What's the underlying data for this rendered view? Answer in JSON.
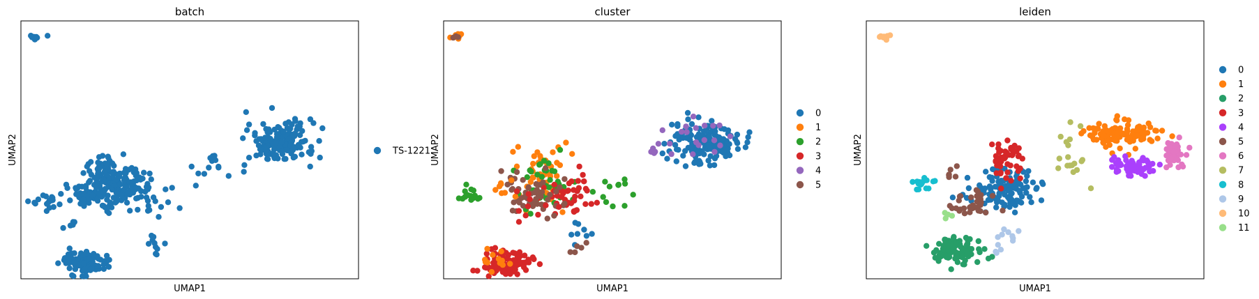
{
  "chart_data": [
    {
      "type": "scatter",
      "title": "batch",
      "xlabel": "UMAP1",
      "ylabel": "UMAP2",
      "xticks": false,
      "yticks": false,
      "legend_position": "right",
      "legend": [
        {
          "label": "TS-1221",
          "color": "#1f77b4"
        }
      ],
      "clusters": [
        {
          "cat": 0,
          "cx": 0.04,
          "cy": 0.94,
          "sx": 0.01,
          "sy": 0.006,
          "n": 12
        },
        {
          "cat": 0,
          "cx": 0.77,
          "cy": 0.53,
          "sx": 0.05,
          "sy": 0.04,
          "n": 170
        },
        {
          "cat": 0,
          "cx": 0.29,
          "cy": 0.36,
          "sx": 0.05,
          "sy": 0.04,
          "n": 160
        },
        {
          "cat": 0,
          "cx": 0.19,
          "cy": 0.32,
          "sx": 0.03,
          "sy": 0.02,
          "n": 40
        },
        {
          "cat": 0,
          "cx": 0.19,
          "cy": 0.06,
          "sx": 0.035,
          "sy": 0.025,
          "n": 110
        },
        {
          "cat": 0,
          "cx": 0.07,
          "cy": 0.3,
          "sx": 0.02,
          "sy": 0.015,
          "n": 18
        },
        {
          "cat": 0,
          "cx": 0.24,
          "cy": 0.43,
          "sx": 0.025,
          "sy": 0.04,
          "n": 35
        },
        {
          "cat": 0,
          "cx": 0.57,
          "cy": 0.44,
          "sx": 0.04,
          "sy": 0.03,
          "n": 15
        },
        {
          "cat": 0,
          "cx": 0.42,
          "cy": 0.3,
          "sx": 0.03,
          "sy": 0.03,
          "n": 10
        },
        {
          "cat": 0,
          "cx": 0.4,
          "cy": 0.13,
          "sx": 0.02,
          "sy": 0.03,
          "n": 10
        },
        {
          "cat": 0,
          "cx": 0.15,
          "cy": 0.2,
          "sx": 0.01,
          "sy": 0.01,
          "n": 4
        }
      ]
    },
    {
      "type": "scatter",
      "title": "cluster",
      "xlabel": "UMAP1",
      "ylabel": "UMAP2",
      "xticks": false,
      "yticks": false,
      "legend_position": "right",
      "legend": [
        {
          "label": "0",
          "color": "#1f77b4"
        },
        {
          "label": "1",
          "color": "#ff7f0e"
        },
        {
          "label": "2",
          "color": "#2ca02c"
        },
        {
          "label": "3",
          "color": "#d62728"
        },
        {
          "label": "4",
          "color": "#9467bd"
        },
        {
          "label": "5",
          "color": "#8c564b"
        }
      ],
      "clusters": [
        {
          "cat": 1,
          "cx": 0.04,
          "cy": 0.94,
          "sx": 0.01,
          "sy": 0.006,
          "n": 8
        },
        {
          "cat": 5,
          "cx": 0.04,
          "cy": 0.94,
          "sx": 0.008,
          "sy": 0.005,
          "n": 4
        },
        {
          "cat": 0,
          "cx": 0.77,
          "cy": 0.53,
          "sx": 0.05,
          "sy": 0.04,
          "n": 160
        },
        {
          "cat": 4,
          "cx": 0.72,
          "cy": 0.55,
          "sx": 0.06,
          "sy": 0.04,
          "n": 18
        },
        {
          "cat": 4,
          "cx": 0.64,
          "cy": 0.5,
          "sx": 0.02,
          "sy": 0.02,
          "n": 6
        },
        {
          "cat": 1,
          "cx": 0.29,
          "cy": 0.42,
          "sx": 0.04,
          "sy": 0.06,
          "n": 45
        },
        {
          "cat": 2,
          "cx": 0.32,
          "cy": 0.37,
          "sx": 0.05,
          "sy": 0.05,
          "n": 40
        },
        {
          "cat": 3,
          "cx": 0.37,
          "cy": 0.32,
          "sx": 0.04,
          "sy": 0.04,
          "n": 40
        },
        {
          "cat": 5,
          "cx": 0.27,
          "cy": 0.32,
          "sx": 0.05,
          "sy": 0.04,
          "n": 45
        },
        {
          "cat": 2,
          "cx": 0.08,
          "cy": 0.32,
          "sx": 0.02,
          "sy": 0.015,
          "n": 16
        },
        {
          "cat": 5,
          "cx": 0.21,
          "cy": 0.39,
          "sx": 0.015,
          "sy": 0.015,
          "n": 8
        },
        {
          "cat": 1,
          "cx": 0.17,
          "cy": 0.34,
          "sx": 0.02,
          "sy": 0.02,
          "n": 8
        },
        {
          "cat": 3,
          "cx": 0.19,
          "cy": 0.06,
          "sx": 0.035,
          "sy": 0.025,
          "n": 100
        },
        {
          "cat": 1,
          "cx": 0.17,
          "cy": 0.07,
          "sx": 0.03,
          "sy": 0.02,
          "n": 12
        },
        {
          "cat": 2,
          "cx": 0.48,
          "cy": 0.34,
          "sx": 0.05,
          "sy": 0.04,
          "n": 12
        },
        {
          "cat": 0,
          "cx": 0.4,
          "cy": 0.16,
          "sx": 0.02,
          "sy": 0.03,
          "n": 8
        },
        {
          "cat": 5,
          "cx": 0.4,
          "cy": 0.12,
          "sx": 0.02,
          "sy": 0.02,
          "n": 5
        },
        {
          "cat": 3,
          "cx": 0.24,
          "cy": 0.28,
          "sx": 0.04,
          "sy": 0.03,
          "n": 10
        }
      ]
    },
    {
      "type": "scatter",
      "title": "leiden",
      "xlabel": "UMAP1",
      "ylabel": "UMAP2",
      "xticks": false,
      "yticks": false,
      "legend_position": "right",
      "legend": [
        {
          "label": "0",
          "color": "#1f77b4"
        },
        {
          "label": "1",
          "color": "#ff7f0e"
        },
        {
          "label": "2",
          "color": "#279e68"
        },
        {
          "label": "3",
          "color": "#d62728"
        },
        {
          "label": "4",
          "color": "#aa40fc"
        },
        {
          "label": "5",
          "color": "#8c564b"
        },
        {
          "label": "6",
          "color": "#e377c2"
        },
        {
          "label": "7",
          "color": "#b5bd61"
        },
        {
          "label": "8",
          "color": "#17becf"
        },
        {
          "label": "9",
          "color": "#aec7e8"
        },
        {
          "label": "10",
          "color": "#ffbb78"
        },
        {
          "label": "11",
          "color": "#98df8a"
        }
      ],
      "clusters": [
        {
          "cat": 10,
          "cx": 0.05,
          "cy": 0.94,
          "sx": 0.01,
          "sy": 0.006,
          "n": 12
        },
        {
          "cat": 1,
          "cx": 0.76,
          "cy": 0.56,
          "sx": 0.05,
          "sy": 0.025,
          "n": 110
        },
        {
          "cat": 4,
          "cx": 0.79,
          "cy": 0.44,
          "sx": 0.03,
          "sy": 0.02,
          "n": 60
        },
        {
          "cat": 6,
          "cx": 0.91,
          "cy": 0.49,
          "sx": 0.02,
          "sy": 0.03,
          "n": 40
        },
        {
          "cat": 7,
          "cx": 0.61,
          "cy": 0.48,
          "sx": 0.03,
          "sy": 0.06,
          "n": 18
        },
        {
          "cat": 0,
          "cx": 0.41,
          "cy": 0.34,
          "sx": 0.06,
          "sy": 0.04,
          "n": 120
        },
        {
          "cat": 3,
          "cx": 0.42,
          "cy": 0.47,
          "sx": 0.025,
          "sy": 0.04,
          "n": 50
        },
        {
          "cat": 5,
          "cx": 0.32,
          "cy": 0.29,
          "sx": 0.03,
          "sy": 0.02,
          "n": 35
        },
        {
          "cat": 5,
          "cx": 0.26,
          "cy": 0.42,
          "sx": 0.01,
          "sy": 0.02,
          "n": 6
        },
        {
          "cat": 8,
          "cx": 0.17,
          "cy": 0.37,
          "sx": 0.015,
          "sy": 0.015,
          "n": 16
        },
        {
          "cat": 11,
          "cx": 0.24,
          "cy": 0.25,
          "sx": 0.008,
          "sy": 0.01,
          "n": 4
        },
        {
          "cat": 2,
          "cx": 0.27,
          "cy": 0.11,
          "sx": 0.035,
          "sy": 0.025,
          "n": 100
        },
        {
          "cat": 9,
          "cx": 0.4,
          "cy": 0.15,
          "sx": 0.02,
          "sy": 0.03,
          "n": 12
        }
      ]
    }
  ]
}
